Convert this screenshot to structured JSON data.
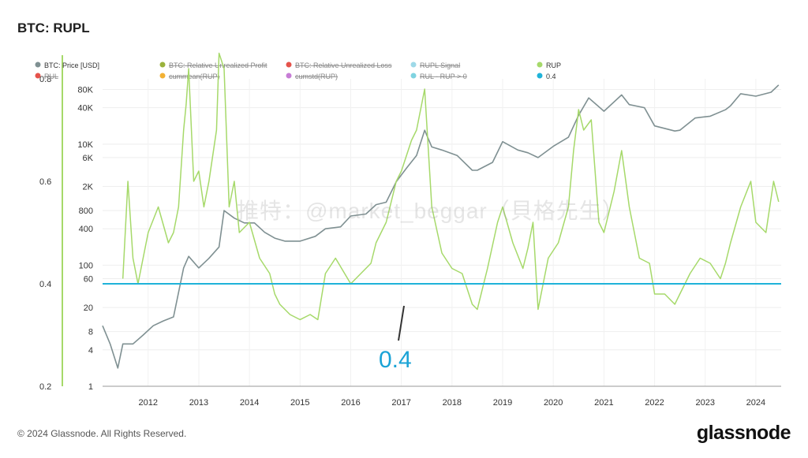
{
  "title": "BTC: RUPL",
  "footer": "© 2024 Glassnode. All Rights Reserved.",
  "brand": "glassnode",
  "watermark": "推特：@market_beggar（貝格先生）",
  "annotation": "0.4",
  "legend": [
    {
      "label": "BTC: Price [USD]",
      "color": "#7f9092",
      "struck": false
    },
    {
      "label": "BTC: Relative Unrealized Profit",
      "color": "#9ab23c",
      "struck": true
    },
    {
      "label": "BTC: Relative Unrealized Loss",
      "color": "#e5534b",
      "struck": true
    },
    {
      "label": "RUPL Signal",
      "color": "#9ed9e8",
      "struck": true
    },
    {
      "label": "RUP",
      "color": "#a6d96a",
      "struck": false
    },
    {
      "label": "RUL",
      "color": "#e5534b",
      "struck": true
    },
    {
      "label": "cummean(RUP)",
      "color": "#f2b134",
      "struck": true
    },
    {
      "label": "cumstd(RUP)",
      "color": "#c77dd6",
      "struck": true
    },
    {
      "label": "RUL - RUP > 0",
      "color": "#7fd3e0",
      "struck": true
    },
    {
      "label": "0.4",
      "color": "#1fb3d9",
      "struck": false
    }
  ],
  "colors": {
    "price": "#7f9092",
    "rup": "#a6d96a",
    "threshold": "#1fb3d9"
  },
  "chart_data": {
    "type": "line",
    "x_ticks": [
      "2012",
      "2013",
      "2014",
      "2015",
      "2016",
      "2017",
      "2018",
      "2019",
      "2020",
      "2021",
      "2022",
      "2023",
      "2024"
    ],
    "xlim": [
      2011.6,
      2025.0
    ],
    "left_axis": {
      "ticks": [
        "0.8",
        "0.6",
        "0.4",
        "0.2"
      ],
      "ylim": [
        0.2,
        0.8
      ]
    },
    "right_axis": {
      "scale": "log",
      "ticks": [
        "80K",
        "40K",
        "10K",
        "6K",
        "2K",
        "800",
        "400",
        "100",
        "60",
        "20",
        "8",
        "4",
        "1"
      ],
      "ylim": [
        1,
        120000
      ]
    },
    "threshold": 0.4,
    "series": [
      {
        "name": "BTC: Price [USD]",
        "axis": "price",
        "x": [
          2011.6,
          2011.75,
          2011.9,
          2012.0,
          2012.2,
          2012.4,
          2012.6,
          2012.8,
          2013.0,
          2013.2,
          2013.3,
          2013.5,
          2013.7,
          2013.9,
          2014.0,
          2014.2,
          2014.4,
          2014.6,
          2014.8,
          2015.0,
          2015.2,
          2015.5,
          2015.8,
          2016.0,
          2016.3,
          2016.5,
          2016.8,
          2017.0,
          2017.2,
          2017.4,
          2017.6,
          2017.8,
          2017.96,
          2018.1,
          2018.3,
          2018.6,
          2018.9,
          2019.0,
          2019.3,
          2019.5,
          2019.8,
          2020.0,
          2020.2,
          2020.5,
          2020.8,
          2021.0,
          2021.2,
          2021.5,
          2021.85,
          2022.0,
          2022.3,
          2022.5,
          2022.9,
          2023.0,
          2023.3,
          2023.6,
          2023.9,
          2024.0,
          2024.2,
          2024.5,
          2024.8,
          2024.95
        ],
        "values": [
          10,
          5,
          2,
          5,
          5,
          7,
          10,
          12,
          14,
          90,
          140,
          90,
          130,
          200,
          800,
          600,
          500,
          500,
          350,
          280,
          250,
          250,
          300,
          400,
          430,
          650,
          700,
          1000,
          1100,
          2400,
          4000,
          6500,
          17000,
          9000,
          8000,
          6500,
          3700,
          3700,
          5000,
          11000,
          8000,
          7200,
          6000,
          9200,
          13000,
          30000,
          58000,
          35000,
          65000,
          45000,
          40000,
          20000,
          16500,
          17000,
          27000,
          29000,
          37000,
          43000,
          68000,
          62000,
          72000,
          95000
        ]
      },
      {
        "name": "RUP",
        "axis": "ratio",
        "x": [
          2011.6,
          2011.9,
          2012.0,
          2012.1,
          2012.2,
          2012.3,
          2012.5,
          2012.7,
          2012.9,
          2013.0,
          2013.1,
          2013.2,
          2013.25,
          2013.3,
          2013.4,
          2013.5,
          2013.6,
          2013.7,
          2013.85,
          2013.9,
          2014.0,
          2014.1,
          2014.2,
          2014.3,
          2014.5,
          2014.7,
          2014.9,
          2015.0,
          2015.1,
          2015.3,
          2015.5,
          2015.7,
          2015.85,
          2016.0,
          2016.2,
          2016.5,
          2016.7,
          2016.9,
          2017.0,
          2017.2,
          2017.4,
          2017.5,
          2017.7,
          2017.8,
          2017.96,
          2018.1,
          2018.3,
          2018.5,
          2018.7,
          2018.9,
          2019.0,
          2019.2,
          2019.4,
          2019.5,
          2019.7,
          2019.9,
          2020.0,
          2020.1,
          2020.2,
          2020.4,
          2020.6,
          2020.8,
          2020.9,
          2021.0,
          2021.1,
          2021.25,
          2021.4,
          2021.5,
          2021.7,
          2021.85,
          2022.0,
          2022.2,
          2022.4,
          2022.5,
          2022.7,
          2022.9,
          2023.0,
          2023.2,
          2023.4,
          2023.6,
          2023.8,
          2023.9,
          2024.0,
          2024.2,
          2024.4,
          2024.5,
          2024.7,
          2024.85,
          2024.95
        ],
        "values": [
          null,
          null,
          0.41,
          0.6,
          0.45,
          0.4,
          0.5,
          0.55,
          0.48,
          0.5,
          0.55,
          0.7,
          0.75,
          0.82,
          0.6,
          0.62,
          0.55,
          0.6,
          0.7,
          0.85,
          0.82,
          0.55,
          0.6,
          0.5,
          0.52,
          0.45,
          0.42,
          0.38,
          0.36,
          0.34,
          0.33,
          0.34,
          0.33,
          0.42,
          0.45,
          0.4,
          0.42,
          0.44,
          0.48,
          0.52,
          0.6,
          0.62,
          0.68,
          0.7,
          0.78,
          0.55,
          0.46,
          0.43,
          0.42,
          0.36,
          0.35,
          0.43,
          0.52,
          0.55,
          0.48,
          0.43,
          0.47,
          0.52,
          0.35,
          0.45,
          0.48,
          0.55,
          0.66,
          0.74,
          0.7,
          0.72,
          0.52,
          0.5,
          0.58,
          0.66,
          0.55,
          0.45,
          0.44,
          0.38,
          0.38,
          0.36,
          0.38,
          0.42,
          0.45,
          0.44,
          0.41,
          0.44,
          0.48,
          0.55,
          0.6,
          0.52,
          0.5,
          0.6,
          0.56
        ]
      }
    ]
  }
}
